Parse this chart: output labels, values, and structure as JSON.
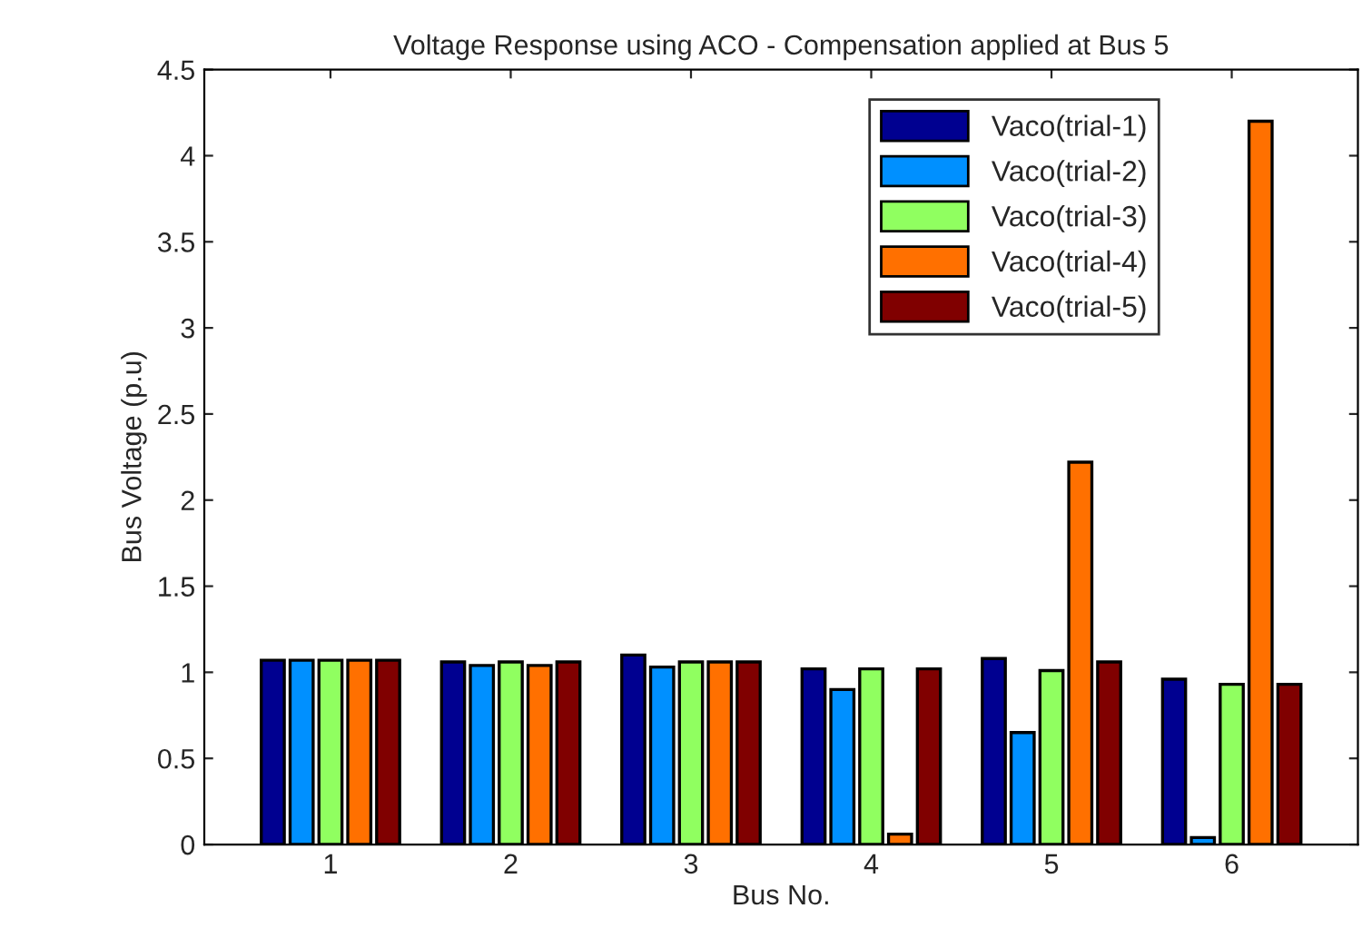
{
  "chart_data": {
    "type": "bar",
    "title": "Voltage Response using ACO - Compensation applied at Bus 5",
    "xlabel": "Bus No.",
    "ylabel": "Bus Voltage (p.u)",
    "categories": [
      "1",
      "2",
      "3",
      "4",
      "5",
      "6"
    ],
    "series": [
      {
        "name": "Vaco(trial-1)",
        "color": "#000090",
        "values": [
          1.07,
          1.06,
          1.1,
          1.02,
          1.08,
          0.96
        ]
      },
      {
        "name": "Vaco(trial-2)",
        "color": "#0090ff",
        "values": [
          1.07,
          1.04,
          1.03,
          0.9,
          0.65,
          0.04
        ]
      },
      {
        "name": "Vaco(trial-3)",
        "color": "#90ff60",
        "values": [
          1.07,
          1.06,
          1.06,
          1.02,
          1.01,
          0.93
        ]
      },
      {
        "name": "Vaco(trial-4)",
        "color": "#ff7000",
        "values": [
          1.07,
          1.04,
          1.06,
          0.06,
          2.22,
          4.2
        ]
      },
      {
        "name": "Vaco(trial-5)",
        "color": "#800000",
        "values": [
          1.07,
          1.06,
          1.06,
          1.02,
          1.06,
          0.93
        ]
      }
    ],
    "ylim": [
      0,
      4.5
    ],
    "yticks": [
      0,
      0.5,
      1,
      1.5,
      2,
      2.5,
      3,
      3.5,
      4,
      4.5
    ],
    "grid": false,
    "legend": "top right"
  }
}
